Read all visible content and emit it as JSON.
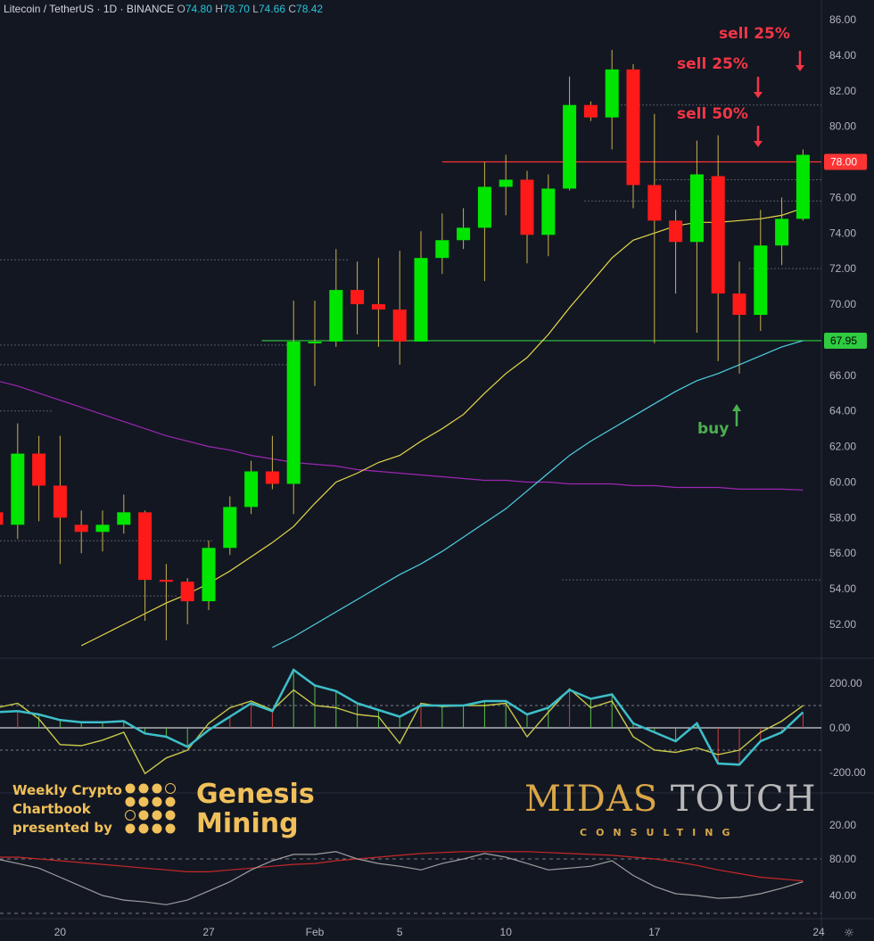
{
  "header": {
    "symbol": "Litecoin / TetherUS · 1D · BINANCE",
    "open_k": "O",
    "open": "74.80",
    "high_k": "H",
    "high": "78.70",
    "low_k": "L",
    "low": "74.66",
    "close_k": "C",
    "close": "78.42"
  },
  "annotations": {
    "sell1": "sell 25%",
    "sell2": "sell 25%",
    "sell3": "sell 50%",
    "buy": "buy"
  },
  "watermark": {
    "line1": "Weekly Crypto",
    "line2": "Chartbook",
    "line3": "presented by",
    "brand1": "Genesis",
    "brand2": "Mining",
    "midas": "MIDAS",
    "touch": "TOUCH",
    "consulting": "CONSULTING"
  },
  "colors": {
    "background": "#131722",
    "up": "#00e600",
    "down": "#ff1a1a",
    "ma_fast": "#e6d84a",
    "ma_mid": "#4dd0e1",
    "ma_slow": "#9c27b0",
    "resistance": "#ff3333",
    "support": "#2ecc40",
    "cci_main": "#3dbfc9",
    "cci_signal": "#c8c84a",
    "stoch_k": "#9e9e9e",
    "stoch_d": "#c62828"
  },
  "chart_data": {
    "type": "candlestick",
    "title": "Litecoin / TetherUS · 1D · BINANCE",
    "y_axis_ticks": [
      "86.00",
      "84.00",
      "82.00",
      "80.00",
      "78.00",
      "76.00",
      "74.00",
      "72.00",
      "70.00",
      "68.00",
      "66.00",
      "64.00",
      "62.00",
      "60.00",
      "58.00",
      "56.00",
      "54.00",
      "52.00"
    ],
    "ylim": [
      50.5,
      87
    ],
    "x_tick_labels": [
      {
        "label": "20",
        "index": 3
      },
      {
        "label": "27",
        "index": 10
      },
      {
        "label": "Feb",
        "index": 15
      },
      {
        "label": "5",
        "index": 19
      },
      {
        "label": "10",
        "index": 24
      },
      {
        "label": "17",
        "index": 31
      },
      {
        "label": "24",
        "index": 38
      }
    ],
    "price_labels": [
      {
        "value": 78.0,
        "text": "78.00",
        "color": "#ff3333"
      },
      {
        "value": 67.95,
        "text": "67.95",
        "color": "#2ecc40"
      }
    ],
    "horizontal_levels": [
      {
        "value": 78.0,
        "from_index": 21,
        "color": "#ff3333"
      },
      {
        "value": 67.95,
        "from_index": 12.5,
        "color": "#2ecc40"
      }
    ],
    "candles": [
      {
        "o": 58.3,
        "h": 59.5,
        "l": 57.6,
        "c": 57.6
      },
      {
        "o": 57.6,
        "h": 63.3,
        "l": 56.8,
        "c": 61.6
      },
      {
        "o": 61.6,
        "h": 62.6,
        "l": 57.8,
        "c": 59.8
      },
      {
        "o": 59.8,
        "h": 62.6,
        "l": 55.4,
        "c": 58.0
      },
      {
        "o": 57.6,
        "h": 58.4,
        "l": 56.0,
        "c": 57.2
      },
      {
        "o": 57.2,
        "h": 58.4,
        "l": 56.1,
        "c": 57.6
      },
      {
        "o": 57.6,
        "h": 59.3,
        "l": 57.1,
        "c": 58.3
      },
      {
        "o": 58.3,
        "h": 58.4,
        "l": 52.2,
        "c": 54.5
      },
      {
        "o": 54.5,
        "h": 55.4,
        "l": 51.1,
        "c": 54.4
      },
      {
        "o": 54.4,
        "h": 54.6,
        "l": 52.0,
        "c": 53.3
      },
      {
        "o": 53.3,
        "h": 56.7,
        "l": 52.8,
        "c": 56.3
      },
      {
        "o": 56.3,
        "h": 59.2,
        "l": 55.9,
        "c": 58.6
      },
      {
        "o": 58.6,
        "h": 61.2,
        "l": 58.2,
        "c": 60.6
      },
      {
        "o": 60.6,
        "h": 62.6,
        "l": 59.6,
        "c": 59.9
      },
      {
        "o": 59.9,
        "h": 70.2,
        "l": 58.2,
        "c": 67.9
      },
      {
        "o": 67.9,
        "h": 70.2,
        "l": 65.4,
        "c": 67.9
      },
      {
        "o": 67.9,
        "h": 73.1,
        "l": 67.6,
        "c": 70.8
      },
      {
        "o": 70.8,
        "h": 72.4,
        "l": 68.3,
        "c": 70.0
      },
      {
        "o": 70.0,
        "h": 72.6,
        "l": 67.6,
        "c": 69.7
      },
      {
        "o": 69.7,
        "h": 73.0,
        "l": 66.6,
        "c": 67.9
      },
      {
        "o": 67.9,
        "h": 74.1,
        "l": 67.9,
        "c": 72.6
      },
      {
        "o": 72.6,
        "h": 75.1,
        "l": 71.7,
        "c": 73.6
      },
      {
        "o": 73.6,
        "h": 75.4,
        "l": 73.1,
        "c": 74.3
      },
      {
        "o": 74.3,
        "h": 78.0,
        "l": 71.3,
        "c": 76.6
      },
      {
        "o": 76.6,
        "h": 78.4,
        "l": 75.0,
        "c": 77.0
      },
      {
        "o": 77.0,
        "h": 77.5,
        "l": 72.3,
        "c": 73.9
      },
      {
        "o": 73.9,
        "h": 77.3,
        "l": 72.7,
        "c": 76.5
      },
      {
        "o": 76.5,
        "h": 82.8,
        "l": 76.4,
        "c": 81.2
      },
      {
        "o": 81.2,
        "h": 81.4,
        "l": 80.3,
        "c": 80.5
      },
      {
        "o": 80.5,
        "h": 84.3,
        "l": 78.7,
        "c": 83.2
      },
      {
        "o": 83.2,
        "h": 83.5,
        "l": 75.4,
        "c": 76.7
      },
      {
        "o": 76.7,
        "h": 80.7,
        "l": 67.8,
        "c": 74.7
      },
      {
        "o": 74.7,
        "h": 75.3,
        "l": 70.6,
        "c": 73.5
      },
      {
        "o": 73.5,
        "h": 79.2,
        "l": 68.4,
        "c": 77.3
      },
      {
        "o": 77.2,
        "h": 79.5,
        "l": 66.8,
        "c": 70.6
      },
      {
        "o": 70.6,
        "h": 72.4,
        "l": 66.1,
        "c": 69.4
      },
      {
        "o": 69.4,
        "h": 75.3,
        "l": 68.5,
        "c": 73.3
      },
      {
        "o": 73.3,
        "h": 76.0,
        "l": 72.2,
        "c": 74.8
      },
      {
        "o": 74.8,
        "h": 78.7,
        "l": 74.7,
        "c": 78.4
      }
    ],
    "series": [
      {
        "values": [
          null,
          null,
          null,
          null,
          null,
          null,
          null,
          null,
          null,
          null,
          null,
          null,
          null,
          null,
          null,
          null,
          null,
          null,
          null,
          null,
          null,
          null,
          null,
          null,
          null,
          null,
          null,
          null,
          null,
          null,
          null,
          null,
          null,
          null,
          null,
          null,
          null,
          null,
          null
        ]
      },
      {
        "values": [
          null,
          null,
          null,
          null,
          null,
          null,
          null,
          null,
          null,
          null,
          null,
          null,
          null,
          null,
          null,
          null,
          null,
          null,
          null,
          null,
          null,
          null,
          null,
          null,
          null,
          null,
          null,
          null,
          null,
          null,
          null,
          null,
          null,
          null,
          null,
          null,
          null,
          null,
          null
        ]
      },
      {
        "values": [
          null,
          null,
          null,
          null,
          null,
          null,
          null,
          null,
          null,
          null,
          null,
          null,
          null,
          null,
          null,
          null,
          null,
          null,
          null,
          null,
          null,
          null,
          null,
          null,
          null,
          null,
          null,
          null,
          null,
          null,
          null,
          null,
          null,
          null,
          null,
          null,
          null,
          null,
          null
        ]
      }
    ],
    "ma_fast": [
      null,
      null,
      null,
      null,
      50.8,
      51.4,
      52.0,
      52.6,
      53.2,
      53.7,
      54.3,
      55.0,
      55.8,
      56.6,
      57.5,
      58.8,
      60.0,
      60.5,
      61.1,
      61.5,
      62.3,
      63.0,
      63.8,
      65.0,
      66.1,
      67.0,
      68.3,
      69.8,
      71.2,
      72.6,
      73.6,
      74.0,
      74.4,
      74.6,
      74.6,
      74.7,
      74.8,
      75.0,
      75.4
    ],
    "ma_mid": [
      null,
      null,
      null,
      null,
      null,
      null,
      null,
      null,
      null,
      null,
      null,
      null,
      null,
      50.7,
      51.3,
      52.0,
      52.7,
      53.4,
      54.1,
      54.8,
      55.4,
      56.1,
      56.9,
      57.7,
      58.5,
      59.5,
      60.5,
      61.5,
      62.3,
      63.0,
      63.7,
      64.4,
      65.1,
      65.7,
      66.1,
      66.6,
      67.1,
      67.6,
      67.95
    ],
    "ma_slow": [
      65.7,
      65.4,
      65.0,
      64.6,
      64.2,
      63.8,
      63.4,
      63.0,
      62.6,
      62.3,
      62.0,
      61.8,
      61.5,
      61.3,
      61.1,
      61.0,
      60.9,
      60.7,
      60.6,
      60.5,
      60.4,
      60.3,
      60.2,
      60.1,
      60.1,
      60.0,
      60.0,
      59.9,
      59.9,
      59.9,
      59.8,
      59.8,
      59.7,
      59.7,
      59.7,
      59.6,
      59.6,
      59.6,
      59.55
    ],
    "indicators": {
      "cci": {
        "y_axis_ticks": [
          "200.00",
          "0.00",
          "-200.00"
        ],
        "levels": [
          100,
          -100
        ],
        "main": [
          70,
          75,
          60,
          35,
          25,
          25,
          30,
          -25,
          -40,
          -85,
          -10,
          50,
          110,
          75,
          260,
          190,
          165,
          110,
          80,
          50,
          100,
          100,
          100,
          120,
          120,
          60,
          90,
          170,
          130,
          150,
          20,
          -20,
          -60,
          20,
          -160,
          -165,
          -60,
          -20,
          70
        ],
        "signal": [
          90,
          110,
          40,
          -75,
          -80,
          -55,
          -20,
          -205,
          -135,
          -100,
          20,
          90,
          120,
          80,
          170,
          100,
          90,
          60,
          50,
          -70,
          110,
          95,
          100,
          100,
          110,
          -40,
          70,
          175,
          90,
          120,
          -40,
          -100,
          -110,
          -90,
          -120,
          -100,
          -20,
          30,
          100
        ]
      },
      "stochastic": {
        "y_axis_ticks": [
          "80.00",
          "40.00"
        ],
        "levels": [
          80,
          20
        ],
        "k": [
          80,
          75,
          70,
          60,
          50,
          40,
          35,
          33,
          30,
          35,
          45,
          55,
          68,
          78,
          85,
          85,
          88,
          80,
          75,
          72,
          68,
          75,
          80,
          86,
          82,
          75,
          68,
          70,
          72,
          78,
          62,
          50,
          42,
          40,
          37,
          38,
          42,
          48,
          55
        ],
        "d": [
          82,
          82,
          80,
          78,
          76,
          74,
          72,
          70,
          68,
          66,
          66,
          68,
          70,
          72,
          74,
          75,
          78,
          80,
          82,
          84,
          86,
          87,
          88,
          88,
          88,
          88,
          87,
          86,
          85,
          84,
          82,
          80,
          77,
          73,
          68,
          64,
          60,
          58,
          56
        ]
      }
    }
  }
}
